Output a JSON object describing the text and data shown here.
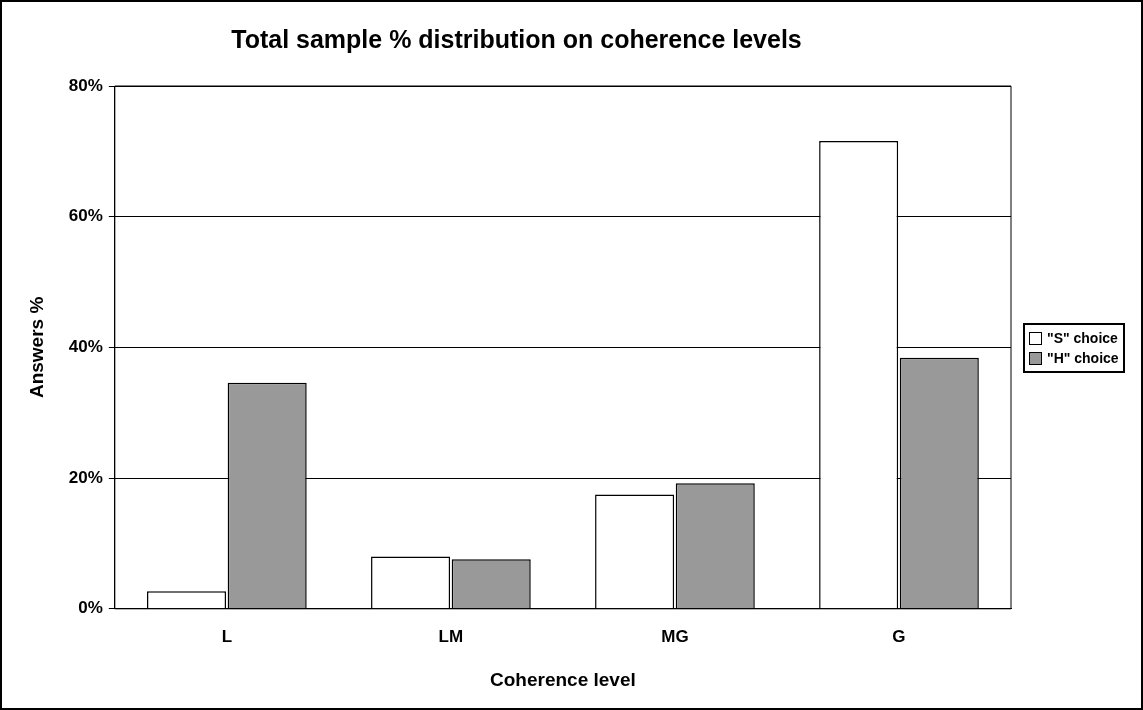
{
  "chart_data": {
    "type": "bar",
    "title": "Total sample % distribution on coherence levels",
    "xlabel": "Coherence level",
    "ylabel": "Answers %",
    "categories": [
      "L",
      "LM",
      "MG",
      "G"
    ],
    "series": [
      {
        "name": "\"S\" choice",
        "color": "#ffffff",
        "values": [
          2.7,
          8.0,
          17.5,
          71.6
        ]
      },
      {
        "name": "\"H\" choice",
        "color": "#999999",
        "values": [
          34.6,
          7.6,
          19.2,
          38.4
        ]
      }
    ],
    "ylim": [
      0,
      80
    ],
    "yticks": [
      {
        "value": 0,
        "label": "0%"
      },
      {
        "value": 20,
        "label": "20%"
      },
      {
        "value": 40,
        "label": "40%"
      },
      {
        "value": 60,
        "label": "60%"
      },
      {
        "value": 80,
        "label": "80%"
      }
    ],
    "grid": "y",
    "legend": "right"
  }
}
